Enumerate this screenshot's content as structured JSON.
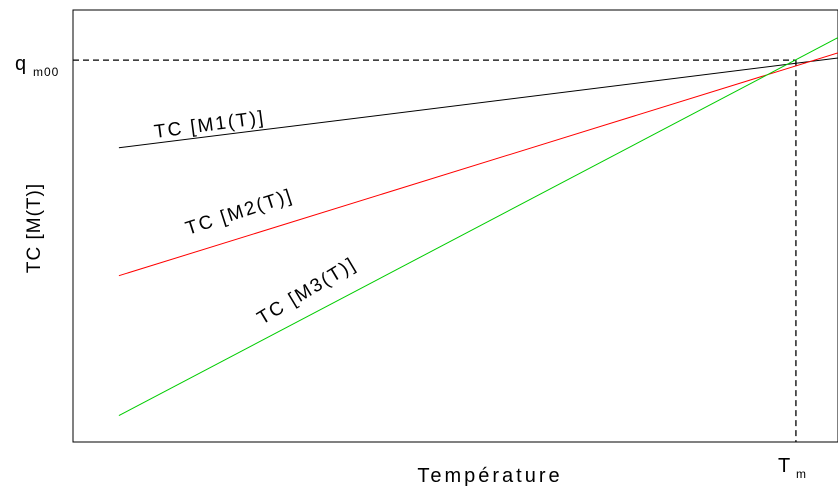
{
  "chart_data": {
    "type": "line",
    "title": "",
    "xlabel": "Température",
    "ylabel": "TC [M(T)]",
    "grid": false,
    "legend": "none",
    "xlim": [
      0.0,
      1.0
    ],
    "ylim": [
      0.0,
      1.0
    ],
    "x_ticks": [
      {
        "label_main": "T",
        "label_sub": "m"
      }
    ],
    "y_ticks": [
      {
        "label_main": "q",
        "label_sub": "m00"
      }
    ],
    "series": [
      {
        "label": "TC [M1(T)]",
        "color": "#000000",
        "x": [
          0.06,
          1.0
        ],
        "y": [
          0.681,
          0.889
        ]
      },
      {
        "label": "TC [M2(T)]",
        "color": "#ff0000",
        "x": [
          0.06,
          1.0
        ],
        "y": [
          0.385,
          0.901
        ]
      },
      {
        "label": "TC [M3(T)]",
        "color": "#00cc00",
        "x": [
          0.06,
          1.0
        ],
        "y": [
          0.061,
          0.936
        ]
      }
    ],
    "reference": {
      "x_value": 0.945,
      "y_value": 0.884,
      "line_style": "dashed",
      "color": "#000000"
    }
  }
}
